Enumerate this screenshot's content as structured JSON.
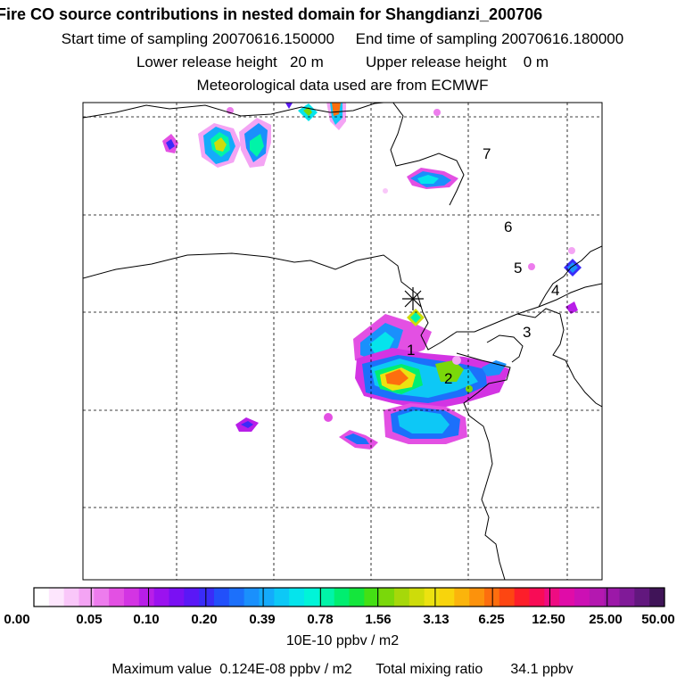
{
  "header": {
    "title": "Fire CO source contributions in nested domain for Shangdianzi_200706",
    "start_label": "Start time of sampling",
    "start_value": "20070616.150000",
    "end_label": "End time of sampling",
    "end_value": "20070616.180000",
    "lower_label": "Lower release height",
    "lower_value": "20 m",
    "upper_label": "Upper release height",
    "upper_value": "0 m",
    "met_text": "Meteorological data used are from ECMWF"
  },
  "map": {
    "site_labels": [
      "1",
      "2",
      "3",
      "4",
      "5",
      "6",
      "7"
    ],
    "release_site_marker": "asterisk",
    "gridlines": "dashed",
    "colors": {
      "coast": "#000000",
      "grid": "#000000",
      "frame": "#000000"
    }
  },
  "legend": {
    "tick_labels": [
      "0.00",
      "0.05",
      "0.10",
      "0.20",
      "0.39",
      "0.78",
      "1.56",
      "3.13",
      "6.25",
      "12.50",
      "25.00",
      "50.00"
    ],
    "unit": "10E-10 ppbv / m2",
    "colors": [
      "#ffffff",
      "#fde6fd",
      "#f9c7f9",
      "#f4a4f4",
      "#ed7ced",
      "#e350e3",
      "#d334e3",
      "#b81ee8",
      "#9b12ef",
      "#7a10f3",
      "#5a18f6",
      "#3a2cf8",
      "#2250fa",
      "#1c70fb",
      "#1a90fc",
      "#14abfb",
      "#0dc8f6",
      "#05e4ec",
      "#00f4d8",
      "#00f4a8",
      "#00ee70",
      "#14e63c",
      "#44e014",
      "#7ad80a",
      "#a6d80a",
      "#cedc0a",
      "#ece210",
      "#f8d40c",
      "#fbb40c",
      "#fc920c",
      "#fd6e0e",
      "#fd4612",
      "#fd1e2a",
      "#f80c56",
      "#ee0c82",
      "#e00ca8",
      "#cc10b4",
      "#b418b0",
      "#9c18a8",
      "#801a98",
      "#62187e",
      "#401458"
    ]
  },
  "footer": {
    "max_label": "Maximum value",
    "max_value": "0.124E-08 ppbv / m2",
    "total_label": "Total mixing ratio",
    "total_value": "34.1 ppbv"
  }
}
